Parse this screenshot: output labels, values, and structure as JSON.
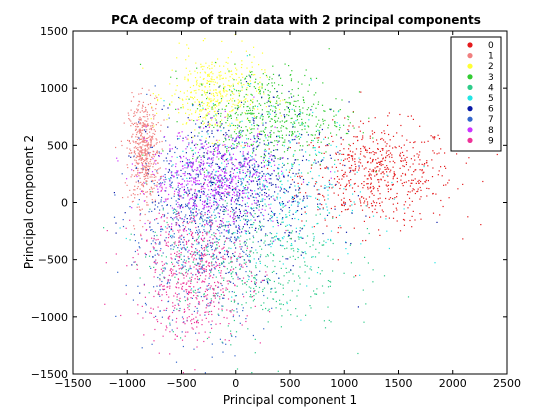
{
  "chart_data": {
    "type": "scatter",
    "title": "PCA decomp of train data with 2 principal components",
    "xlabel": "Principal component 1",
    "ylabel": "Principal component 2",
    "xlim": [
      -1500,
      2500
    ],
    "ylim": [
      -1500,
      1500
    ],
    "x_ticks": [
      -1500,
      -1000,
      -500,
      0,
      500,
      1000,
      1500,
      2000,
      2500
    ],
    "y_ticks": [
      -1500,
      -1000,
      -500,
      0,
      500,
      1000,
      1500
    ],
    "x_tick_labels": [
      "−1500",
      "−1000",
      "−500",
      "0",
      "500",
      "1000",
      "1500",
      "2000",
      "2500"
    ],
    "y_tick_labels": [
      "−1500",
      "−1000",
      "−500",
      "0",
      "500",
      "1000",
      "1500"
    ],
    "legend_position": "top-right",
    "grid": false,
    "series": [
      {
        "name": "0",
        "color": "#e41a1c",
        "cluster": {
          "center": [
            1300,
            250
          ],
          "spread": [
            350,
            220
          ],
          "count": 620
        }
      },
      {
        "name": "1",
        "color": "#f08080",
        "cluster": {
          "center": [
            -850,
            450
          ],
          "spread": [
            70,
            230
          ],
          "count": 520
        }
      },
      {
        "name": "2",
        "color": "#ffff33",
        "cluster": {
          "center": [
            -200,
            950
          ],
          "spread": [
            220,
            180
          ],
          "count": 420
        }
      },
      {
        "name": "3",
        "color": "#33cc33",
        "cluster": {
          "center": [
            300,
            750
          ],
          "spread": [
            350,
            220
          ],
          "count": 560
        }
      },
      {
        "name": "4",
        "color": "#2ecc8a",
        "cluster": {
          "center": [
            100,
            -500
          ],
          "spread": [
            450,
            320
          ],
          "count": 520
        }
      },
      {
        "name": "5",
        "color": "#22e5e5",
        "cluster": {
          "center": [
            300,
            100
          ],
          "spread": [
            480,
            360
          ],
          "count": 420
        }
      },
      {
        "name": "6",
        "color": "#0a1aa8",
        "cluster": {
          "center": [
            50,
            150
          ],
          "spread": [
            420,
            350
          ],
          "count": 640
        }
      },
      {
        "name": "7",
        "color": "#3366cc",
        "cluster": {
          "center": [
            -350,
            -250
          ],
          "spread": [
            320,
            420
          ],
          "count": 620
        }
      },
      {
        "name": "8",
        "color": "#cc33ff",
        "cluster": {
          "center": [
            -200,
            200
          ],
          "spread": [
            300,
            220
          ],
          "count": 620
        }
      },
      {
        "name": "9",
        "color": "#ee3399",
        "cluster": {
          "center": [
            -400,
            -600
          ],
          "spread": [
            260,
            300
          ],
          "count": 600
        }
      }
    ]
  }
}
